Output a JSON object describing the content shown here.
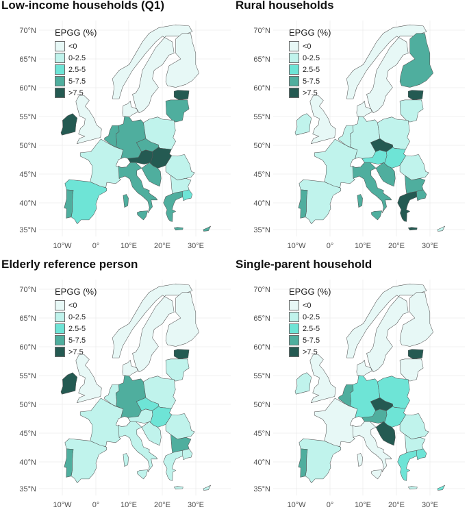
{
  "legend": {
    "title": "EPGG (%)",
    "items": [
      {
        "label": "<0",
        "color": "#e7f8f6"
      },
      {
        "label": "0-2.5",
        "color": "#c0f3ec"
      },
      {
        "label": "2.5-5",
        "color": "#6ee4d6"
      },
      {
        "label": "5-7.5",
        "color": "#4fae9e"
      },
      {
        "label": ">7.5",
        "color": "#245a52"
      }
    ]
  },
  "axes": {
    "lat_labels": [
      "35°N",
      "40°N",
      "45°N",
      "50°N",
      "55°N",
      "60°N",
      "65°N",
      "70°N"
    ],
    "lon_labels": [
      "10°W",
      "0°",
      "10°E",
      "20°E",
      "30°E"
    ]
  },
  "panels": [
    {
      "title": "Low-income households (Q1)",
      "regions": {
        "ireland": "#245a52",
        "uk": "#e7f8f6",
        "iberia": "#6ee4d6",
        "portugal": "#4fae9e",
        "france": "#c0f3ec",
        "benelux": "#4fae9e",
        "germany": "#4fae9e",
        "denmark": "#e7f8f6",
        "scandinavia": "#e7f8f6",
        "finland": "#e7f8f6",
        "baltics": "#4fae9e",
        "estonia": "#245a52",
        "poland": "#c0f3ec",
        "czechia": "#4fae9e",
        "austria": "#245a52",
        "switzerland": "#ffffff",
        "slovakia_hungary": "#245a52",
        "romania": "#c0f3ec",
        "bulgaria": "#c0f3ec",
        "italy": "#4fae9e",
        "balkans": "#4fae9e",
        "greece": "#4fae9e",
        "turkey": "#6ee4d6",
        "sardinia": "#4fae9e",
        "sicily": "#4fae9e",
        "crete": "#4fae9e",
        "cyprus": "#4fae9e"
      }
    },
    {
      "title": "Rural households",
      "regions": {
        "ireland": "#c0f3ec",
        "uk": "#e7f8f6",
        "iberia": "#c0f3ec",
        "portugal": "#4fae9e",
        "france": "#c0f3ec",
        "benelux": "#c0f3ec",
        "germany": "#c0f3ec",
        "denmark": "#e7f8f6",
        "scandinavia": "#e7f8f6",
        "finland": "#4fae9e",
        "baltics": "#c0f3ec",
        "estonia": "#245a52",
        "poland": "#c0f3ec",
        "czechia": "#245a52",
        "austria": "#6ee4d6",
        "switzerland": "#ffffff",
        "slovakia_hungary": "#6ee4d6",
        "romania": "#c0f3ec",
        "bulgaria": "#4fae9e",
        "italy": "#4fae9e",
        "balkans": "#4fae9e",
        "greece": "#245a52",
        "turkey": "#4fae9e",
        "sardinia": "#4fae9e",
        "sicily": "#4fae9e",
        "crete": "#245a52",
        "cyprus": "#c0f3ec"
      }
    },
    {
      "title": "Elderly reference person",
      "regions": {
        "ireland": "#245a52",
        "uk": "#e7f8f6",
        "iberia": "#c0f3ec",
        "portugal": "#4fae9e",
        "france": "#c0f3ec",
        "benelux": "#c0f3ec",
        "germany": "#4fae9e",
        "denmark": "#e7f8f6",
        "scandinavia": "#e7f8f6",
        "finland": "#e7f8f6",
        "baltics": "#c0f3ec",
        "estonia": "#245a52",
        "poland": "#c0f3ec",
        "czechia": "#6ee4d6",
        "austria": "#c0f3ec",
        "switzerland": "#ffffff",
        "slovakia_hungary": "#6ee4d6",
        "romania": "#c0f3ec",
        "bulgaria": "#4fae9e",
        "italy": "#c0f3ec",
        "balkans": "#c0f3ec",
        "greece": "#c0f3ec",
        "turkey": "#c0f3ec",
        "sardinia": "#c0f3ec",
        "sicily": "#c0f3ec",
        "crete": "#c0f3ec",
        "cyprus": "#c0f3ec"
      }
    },
    {
      "title": "Single-parent household",
      "regions": {
        "ireland": "#c0f3ec",
        "uk": "#e7f8f6",
        "iberia": "#c0f3ec",
        "portugal": "#4fae9e",
        "france": "#e7f8f6",
        "benelux": "#4fae9e",
        "germany": "#6ee4d6",
        "denmark": "#e7f8f6",
        "scandinavia": "#e7f8f6",
        "finland": "#e7f8f6",
        "baltics": "#e7f8f6",
        "estonia": "#245a52",
        "poland": "#6ee4d6",
        "czechia": "#245a52",
        "austria": "#4fae9e",
        "switzerland": "#ffffff",
        "slovakia_hungary": "#6ee4d6",
        "romania": "#c0f3ec",
        "bulgaria": "#c0f3ec",
        "italy": "#e7f8f6",
        "balkans": "#245a52",
        "greece": "#6ee4d6",
        "turkey": "#6ee4d6",
        "sardinia": "#e7f8f6",
        "sicily": "#e7f8f6",
        "crete": "#c0f3ec",
        "cyprus": "#6ee4d6"
      }
    }
  ]
}
